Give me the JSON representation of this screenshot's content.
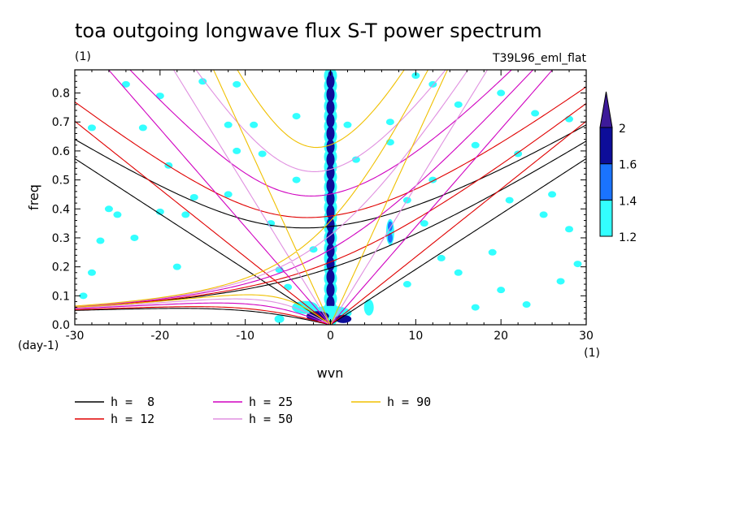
{
  "chart_data": {
    "type": "heatmap",
    "title": "toa outgoing longwave flux S-T power spectrum",
    "subtitle": "(1)",
    "run_label": "T39L96_eml_flat",
    "xlabel": "wvn",
    "ylabel": "freq",
    "x_unit": "(1)",
    "y_unit": "(day-1)",
    "xlim": [
      -30,
      30
    ],
    "ylim": [
      0,
      0.88
    ],
    "x_ticks": [
      -30,
      -20,
      -10,
      0,
      10,
      20,
      30
    ],
    "y_ticks": [
      0.0,
      0.1,
      0.2,
      0.3,
      0.4,
      0.5,
      0.6,
      0.7,
      0.8
    ],
    "x_tick_labels": [
      "-30",
      "-20",
      "-10",
      "0",
      "10",
      "20",
      "30"
    ],
    "y_tick_labels": [
      "0.0",
      "0.1",
      "0.2",
      "0.3",
      "0.4",
      "0.5",
      "0.6",
      "0.7",
      "0.8"
    ],
    "colorbar": {
      "levels": [
        1.2,
        1.4,
        1.6,
        2
      ],
      "labels": [
        "1.2",
        "1.4",
        "1.6",
        "2"
      ],
      "colors": [
        "#33ffff",
        "#1a73ff",
        "#0d0d99",
        "#3d1a99"
      ]
    },
    "dispersion_curves": [
      {
        "name": "h =  8",
        "h": 8,
        "color": "#000000"
      },
      {
        "name": "h = 12",
        "h": 12,
        "color": "#e00000"
      },
      {
        "name": "h = 25",
        "h": 25,
        "color": "#d000c0"
      },
      {
        "name": "h = 50",
        "h": 50,
        "color": "#e090e0"
      },
      {
        "name": "h = 90",
        "h": 90,
        "color": "#f0c000"
      }
    ],
    "spectral_peaks": [
      {
        "x": 0,
        "y_from": 0.0,
        "y_to": 0.88,
        "level": 1.6,
        "note": "zonal-mean column"
      },
      {
        "x": 7,
        "y_from": 0.28,
        "y_to": 0.36,
        "level": 1.4
      },
      {
        "x": -3,
        "y_from": 0.0,
        "y_to": 0.1,
        "level": 1.6
      },
      {
        "x": 4,
        "y_from": 0.0,
        "y_to": 0.08,
        "level": 1.4
      }
    ]
  }
}
